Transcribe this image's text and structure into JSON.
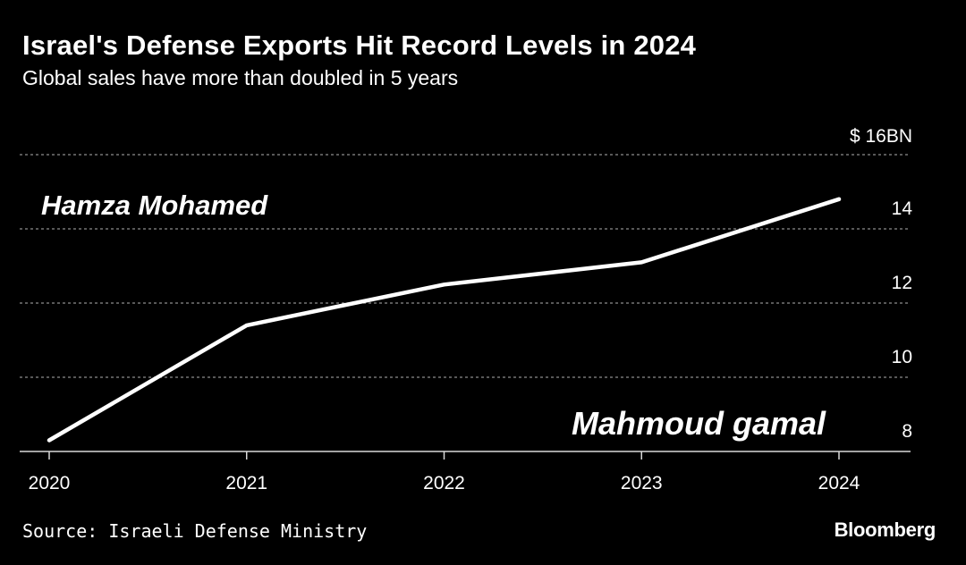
{
  "header": {
    "title": "Israel's Defense Exports Hit Record Levels in 2024",
    "subtitle": "Global sales have more than doubled in 5 years"
  },
  "chart_data": {
    "type": "line",
    "title": "Israel's Defense Exports Hit Record Levels in 2024",
    "subtitle": "Global sales have more than doubled in 5 years",
    "x": [
      "2020",
      "2021",
      "2022",
      "2023",
      "2024"
    ],
    "series": [
      {
        "values": [
          8.3,
          11.4,
          12.5,
          13.1,
          14.8
        ]
      }
    ],
    "y_ticks": [
      {
        "value": 8,
        "label": "8"
      },
      {
        "value": 10,
        "label": "10"
      },
      {
        "value": 12,
        "label": "12"
      },
      {
        "value": 14,
        "label": "14"
      },
      {
        "value": 16,
        "label": "$ 16BN"
      }
    ],
    "ylim": [
      7.3,
      16
    ],
    "y_axis_position": "right",
    "grid": "dashed horizontal",
    "colors": {
      "background": "#000000",
      "line": "#ffffff",
      "grid": "#8c8c8c",
      "text": "#ffffff"
    }
  },
  "watermarks": {
    "top": "Hamza Mohamed",
    "bottom": "Mahmoud gamal"
  },
  "footer": {
    "source": "Source: Israeli Defense Ministry",
    "brand": "Bloomberg"
  }
}
